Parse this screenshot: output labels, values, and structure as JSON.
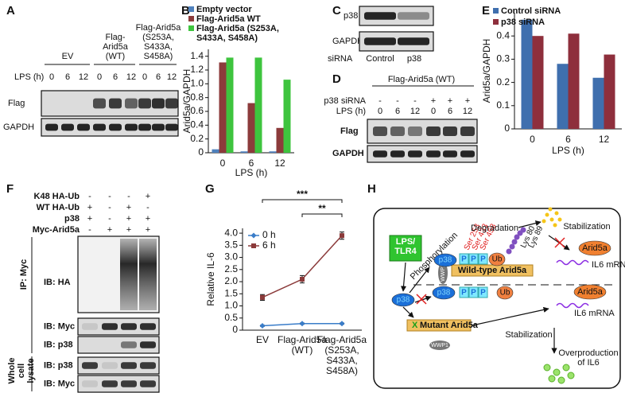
{
  "panels": [
    "A",
    "B",
    "C",
    "D",
    "E",
    "F",
    "G",
    "H"
  ],
  "chart_data": [
    {
      "type": "bar",
      "categories": [
        "0",
        "6",
        "12"
      ],
      "xlabel": "LPS (h)",
      "ylabel": "Arid5a/GAPDH",
      "ylim": [
        0,
        1.5
      ],
      "yticks": [
        0,
        0.2,
        0.4,
        0.6,
        0.8,
        {
          "value": 1,
          "label": "1.0"
        },
        1.2,
        1.4
      ],
      "legend": "top-left",
      "series": [
        {
          "name": "Empty vector",
          "color": "#4f81bd",
          "values": [
            0.05,
            0.02,
            0.02
          ]
        },
        {
          "name": "Flag-Arid5a WT",
          "color": "#8c3b3b",
          "values": [
            1.31,
            0.72,
            0.36
          ]
        },
        {
          "name": "Flag-Arid5a (S253A, S433A, S458A)",
          "color": "#3ec43e",
          "values": [
            1.38,
            1.38,
            1.06
          ]
        }
      ]
    },
    {
      "type": "bar",
      "categories": [
        "0",
        "6",
        "12"
      ],
      "xlabel": "LPS (h)",
      "ylabel": "Arid5a/GAPDH",
      "ylim": [
        0,
        0.5
      ],
      "yticks": [
        0,
        0.1,
        0.2,
        0.3,
        0.4
      ],
      "legend": "top-left",
      "series": [
        {
          "name": "Control siRNA",
          "color": "#3f6fae",
          "values": [
            0.47,
            0.28,
            0.22
          ]
        },
        {
          "name": "p38 siRNA",
          "color": "#8e2f3c",
          "values": [
            0.4,
            0.41,
            0.32
          ]
        }
      ]
    },
    {
      "type": "line",
      "categories": [
        "EV",
        "Flag-Arid5a (WT)",
        "Flag-Arid5a (S253A, S433A, S458A)"
      ],
      "ylabel": "Relative IL-6",
      "ylim": [
        0,
        4.2
      ],
      "yticks": [
        0,
        0.5,
        {
          "value": 1,
          "label": "1.0"
        },
        1.5,
        {
          "value": 2,
          "label": "2.0"
        },
        2.5,
        {
          "value": 3,
          "label": "3.0"
        },
        3.5,
        {
          "value": 4,
          "label": "4.0"
        }
      ],
      "legend": "top-left",
      "annotations": [
        "***",
        "**"
      ],
      "series": [
        {
          "name": "0 h",
          "color": "#3a7dc9",
          "marker": "diamond",
          "values": [
            0.18,
            0.27,
            0.27
          ],
          "errors": [
            0.02,
            0.02,
            0.02
          ]
        },
        {
          "name": "6 h",
          "color": "#8b3a3a",
          "marker": "square",
          "values": [
            1.35,
            2.1,
            3.9
          ],
          "errors": [
            0.12,
            0.15,
            0.15
          ]
        }
      ]
    }
  ],
  "panel_a": {
    "groups": [
      "EV",
      "Flag-Arid5a (WT)",
      "Flag-Arid5a (S253A, S433A, S458A)"
    ],
    "lps_label": "LPS (h)",
    "lps": [
      "0",
      "6",
      "12",
      "0",
      "6",
      "12",
      "0",
      "6",
      "12"
    ],
    "blots": [
      "Flag",
      "GAPDH"
    ]
  },
  "panel_c": {
    "blots": [
      "p38",
      "GAPDH"
    ],
    "sirna_label": "siRNA",
    "lanes": [
      "Control",
      "p38"
    ]
  },
  "panel_d": {
    "header": "Flag-Arid5a (WT)",
    "rows": [
      {
        "label": "p38 siRNA",
        "values": [
          "-",
          "-",
          "-",
          "+",
          "+",
          "+"
        ]
      },
      {
        "label": "LPS (h)",
        "values": [
          "0",
          "6",
          "12",
          "0",
          "6",
          "12"
        ]
      }
    ],
    "blots": [
      "Flag",
      "GAPDH"
    ]
  },
  "panel_f": {
    "rows": [
      {
        "label": "K48 HA-Ub",
        "values": [
          "-",
          "-",
          "-",
          "+"
        ]
      },
      {
        "label": "WT HA-Ub",
        "values": [
          "+",
          "-",
          "+",
          "-"
        ]
      },
      {
        "label": "p38",
        "values": [
          "+",
          "-",
          "+",
          "+"
        ]
      },
      {
        "label": "Myc-Arid5a",
        "values": [
          "-",
          "+",
          "+",
          "+"
        ]
      }
    ],
    "ip_label": "IP: Myc",
    "lysate_label": "Whole cell lysate",
    "blots": [
      "IB: HA",
      "IB: Myc",
      "IB: p38",
      "IB: p38",
      "IB: Myc"
    ]
  },
  "panel_h": {
    "stimulus": "LPS/ TLR4",
    "p38": [
      "p38",
      "p38",
      "p38"
    ],
    "phosphorylation": "Phosphorylation",
    "degradation": "Degradation",
    "stabilization": [
      "Stabilization",
      "Stabilization"
    ],
    "phospho_sites": [
      "Ser 253",
      "Ser 433",
      "Ser 458"
    ],
    "lysines": [
      "Lys 80",
      "Lys 89"
    ],
    "phosphate": [
      "P",
      "P",
      "P",
      "P",
      "P",
      "P"
    ],
    "ubiquitin": [
      "Ub",
      "Ub"
    ],
    "wild_type": "Wild-type Arid5a",
    "mutant_mark": "X",
    "mutant": "Mutant Arid5a",
    "ligase": [
      "WWP1",
      "WWP1"
    ],
    "protein": [
      "Arid5a",
      "Arid5a"
    ],
    "mrna": [
      "IL6 mRNA",
      "IL6 mRNA"
    ],
    "outcome": "Overproduction of IL6"
  }
}
